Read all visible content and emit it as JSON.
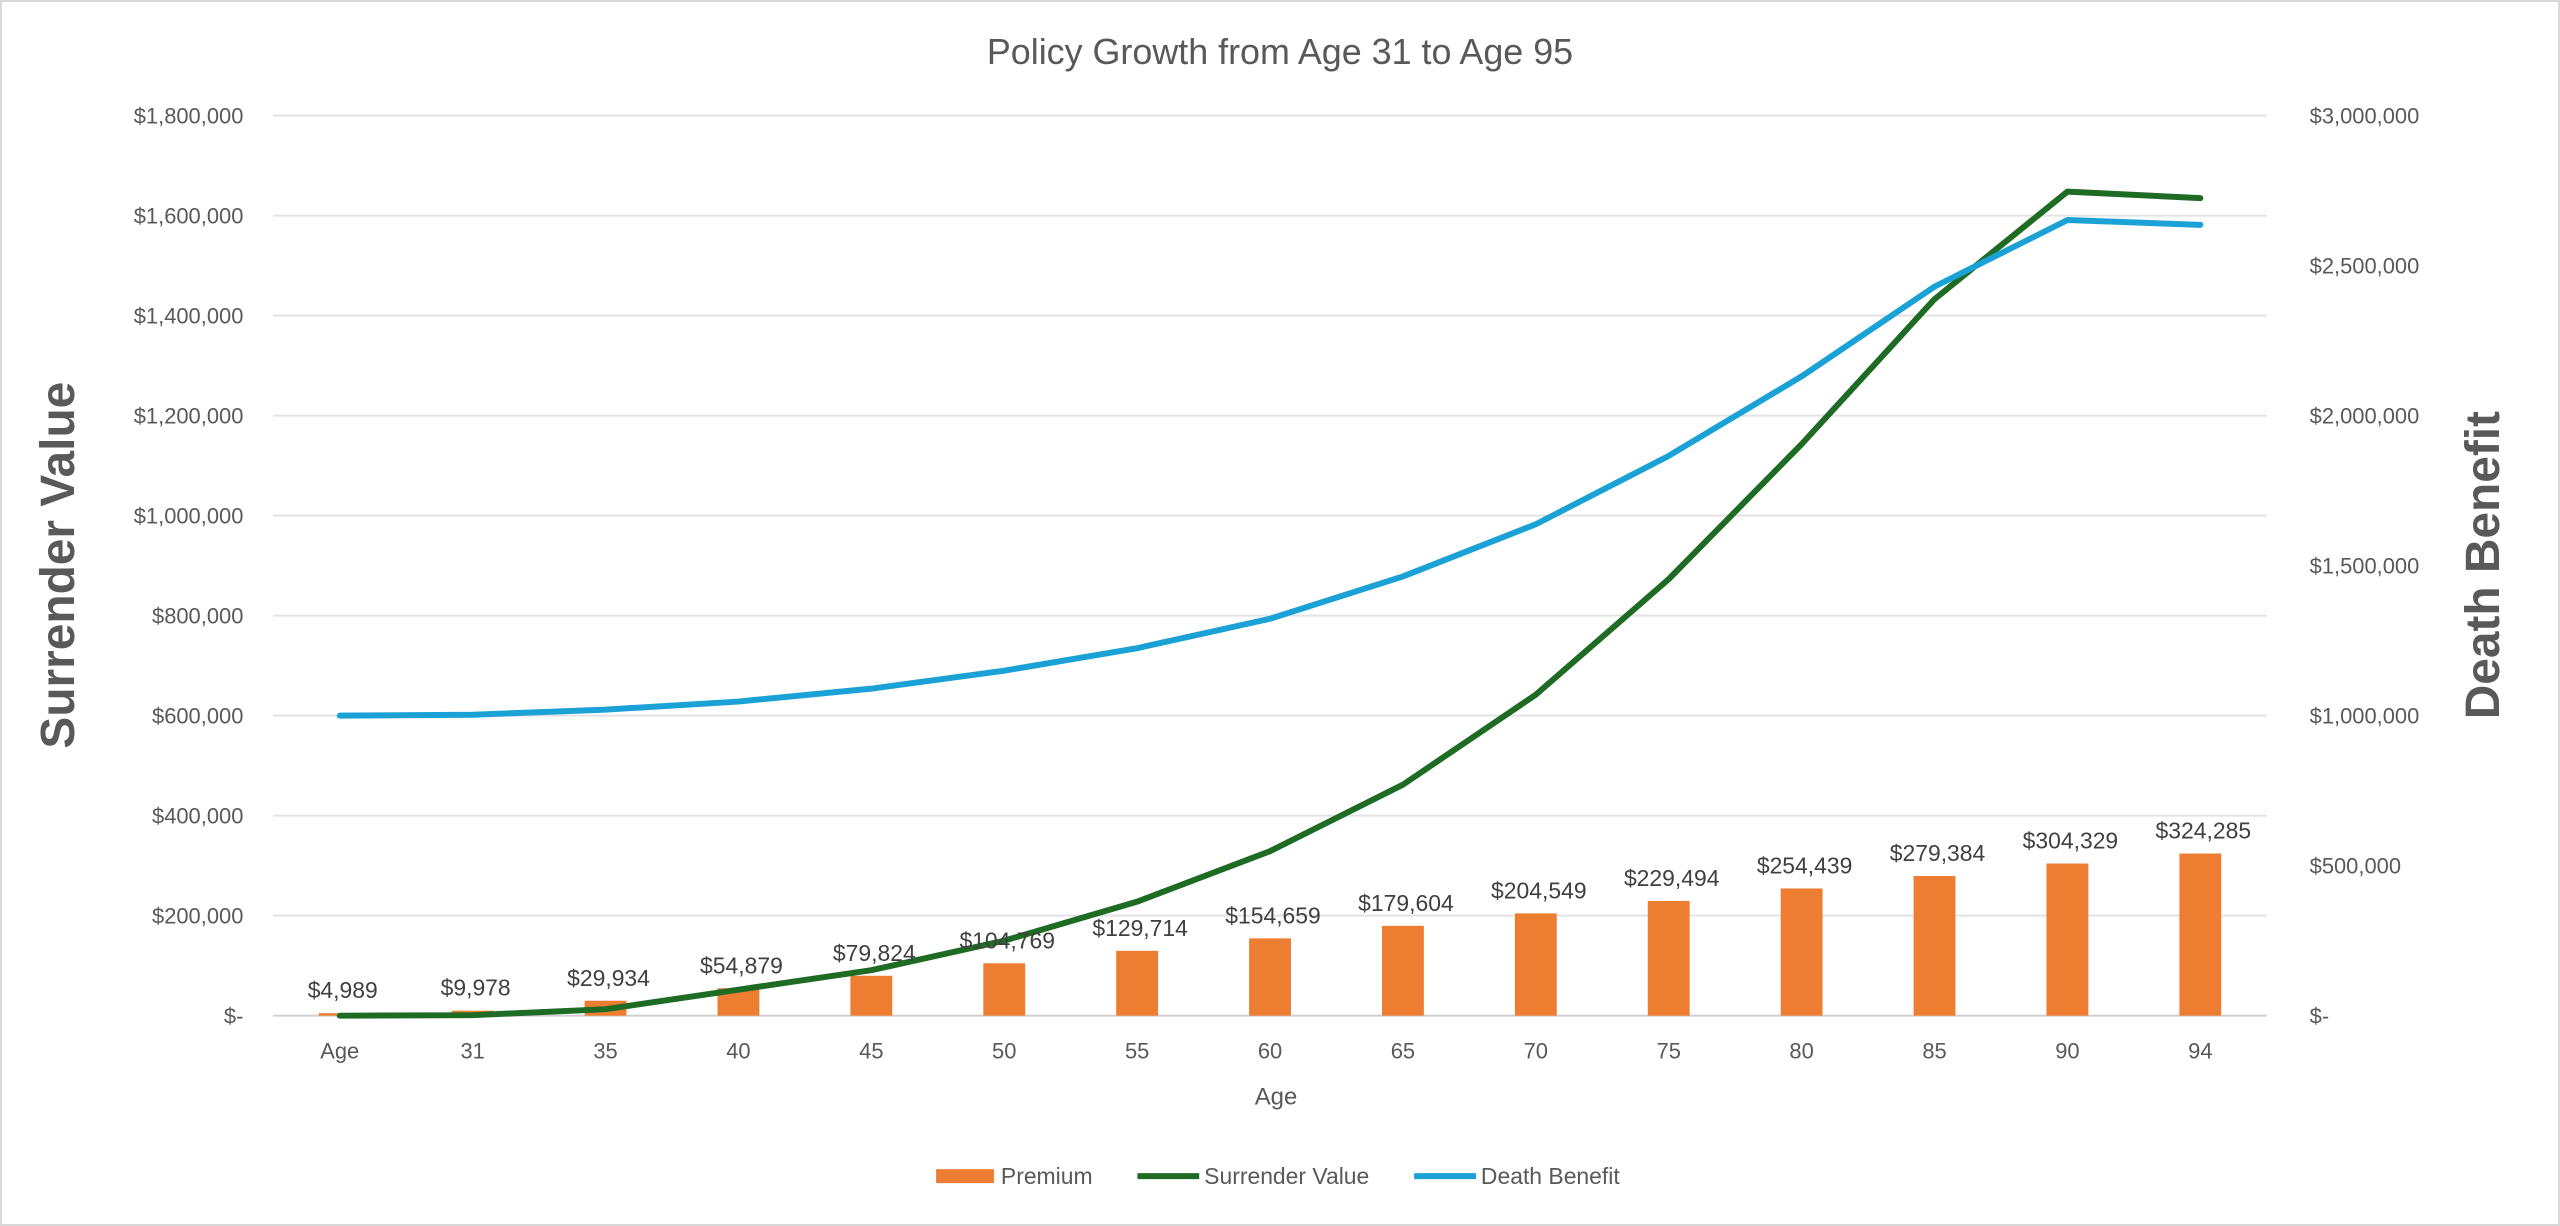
{
  "chart_data": {
    "type": "bar+line",
    "title": "Policy Growth from Age 31 to Age 95",
    "xlabel": "Age",
    "ylabel": "Surrender Value",
    "y2label": "Death Benefit",
    "categories": [
      "Age",
      "31",
      "35",
      "40",
      "45",
      "50",
      "55",
      "60",
      "65",
      "70",
      "75",
      "80",
      "85",
      "90",
      "94"
    ],
    "ylim": [
      0,
      1800000
    ],
    "y2lim": [
      0,
      3000000
    ],
    "yticks": [
      "$-",
      "$200,000",
      "$400,000",
      "$600,000",
      "$800,000",
      "$1,000,000",
      "$1,200,000",
      "$1,400,000",
      "$1,600,000",
      "$1,800,000"
    ],
    "y2ticks": [
      "$-",
      "$500,000",
      "$1,000,000",
      "$1,500,000",
      "$2,000,000",
      "$2,500,000",
      "$3,000,000"
    ],
    "grid": true,
    "legend_position": "bottom",
    "series": [
      {
        "name": "Premium",
        "type": "bar",
        "axis": "left",
        "color": "#ED7D31",
        "values": [
          4989,
          9978,
          29934,
          54879,
          79824,
          104769,
          129714,
          154659,
          179604,
          204549,
          229494,
          254439,
          279384,
          304329,
          324285
        ],
        "labels": [
          "$4,989",
          "$9,978",
          "$29,934",
          "$54,879",
          "$79,824",
          "$104,769",
          "$129,714",
          "$154,659",
          "$179,604",
          "$204,549",
          "$229,494",
          "$254,439",
          "$279,384",
          "$304,329",
          "$324,285"
        ]
      },
      {
        "name": "Surrender Value",
        "type": "line",
        "axis": "left",
        "color": "#1E6B24",
        "values": [
          0,
          1000,
          13000,
          52000,
          91000,
          150000,
          228000,
          329000,
          462000,
          642000,
          873000,
          1143000,
          1433000,
          1648000,
          1635000
        ]
      },
      {
        "name": "Death Benefit",
        "type": "line",
        "axis": "right",
        "color": "#1AA2D6",
        "values": [
          1000000,
          1003000,
          1020000,
          1047000,
          1090000,
          1150000,
          1225000,
          1323000,
          1464000,
          1638000,
          1866000,
          2131000,
          2430000,
          2652000,
          2636000
        ]
      }
    ]
  }
}
